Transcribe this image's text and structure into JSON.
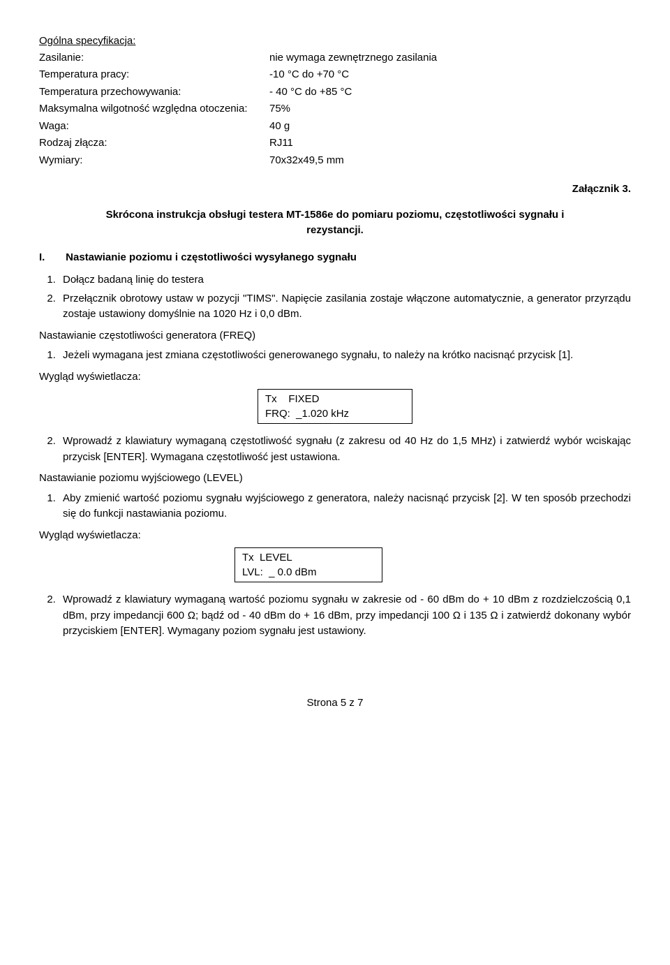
{
  "spec_heading": "Ogólna specyfikacja:",
  "spec": {
    "zasilanie": {
      "label": "Zasilanie:",
      "value": "nie wymaga zewnętrznego zasilania"
    },
    "temp_pracy": {
      "label": "Temperatura pracy:",
      "value": "-10 °C do +70 °C"
    },
    "temp_przech": {
      "label": "Temperatura przechowywania:",
      "value": "- 40 °C do +85 °C"
    },
    "wilgotnosc": {
      "label": "Maksymalna wilgotność względna otoczenia:",
      "value": "75%"
    },
    "waga": {
      "label": "Waga:",
      "value": "40 g"
    },
    "zlacze": {
      "label": "Rodzaj złącza:",
      "value": "RJ11"
    },
    "wymiary": {
      "label": "Wymiary:",
      "value": "70x32x49,5 mm"
    }
  },
  "attachment": "Załącznik 3.",
  "title": "Skrócona instrukcja obsługi testera MT-1586e do pomiaru poziomu, częstotliwości sygnału i rezystancji.",
  "section1": {
    "roman": "I.",
    "text": "Nastawianie poziomu i częstotliwości wysyłanego sygnału"
  },
  "list1": {
    "i1": "Dołącz badaną linię do testera",
    "i2": "Przełącznik obrotowy ustaw w pozycji \"TIMS\". Napięcie zasilania zostaje włączone automatycznie, a generator przyrządu zostaje ustawiony domyślnie na 1020 Hz i 0,0 dBm."
  },
  "freq_heading": "Nastawianie częstotliwości generatora (FREQ)",
  "list2": {
    "i1": "Jeżeli wymagana jest zmiana częstotliwości generowanego sygnału, to należy na krótko nacisnąć przycisk [1]."
  },
  "display_label": "Wygląd wyświetlacza:",
  "display1": {
    "line1": "Tx    FIXED",
    "line2": "FRQ:  _1.020 kHz"
  },
  "list3": {
    "i2": "Wprowadź z klawiatury wymaganą częstotliwość sygnału (z zakresu od 40 Hz do 1,5 MHz) i zatwierdź wybór wciskając przycisk [ENTER]. Wymagana częstotliwość jest ustawiona."
  },
  "level_heading": "Nastawianie poziomu wyjściowego (LEVEL)",
  "list4": {
    "i1": "Aby zmienić wartość poziomu sygnału wyjściowego z generatora, należy nacisnąć przycisk [2]. W ten sposób przechodzi się do funkcji nastawiania poziomu."
  },
  "display2": {
    "line1": "Tx  LEVEL",
    "line2": "LVL:  _ 0.0 dBm"
  },
  "list5": {
    "i2": "Wprowadź z klawiatury wymaganą wartość poziomu sygnału w zakresie od - 60 dBm do + 10 dBm z rozdzielczością 0,1 dBm, przy impedancji 600 Ω; bądź od - 40 dBm do + 16 dBm, przy impedancji 100 Ω i 135 Ω i zatwierdź dokonany wybór przyciskiem [ENTER]. Wymagany poziom sygnału jest ustawiony."
  },
  "footer": "Strona 5 z 7"
}
